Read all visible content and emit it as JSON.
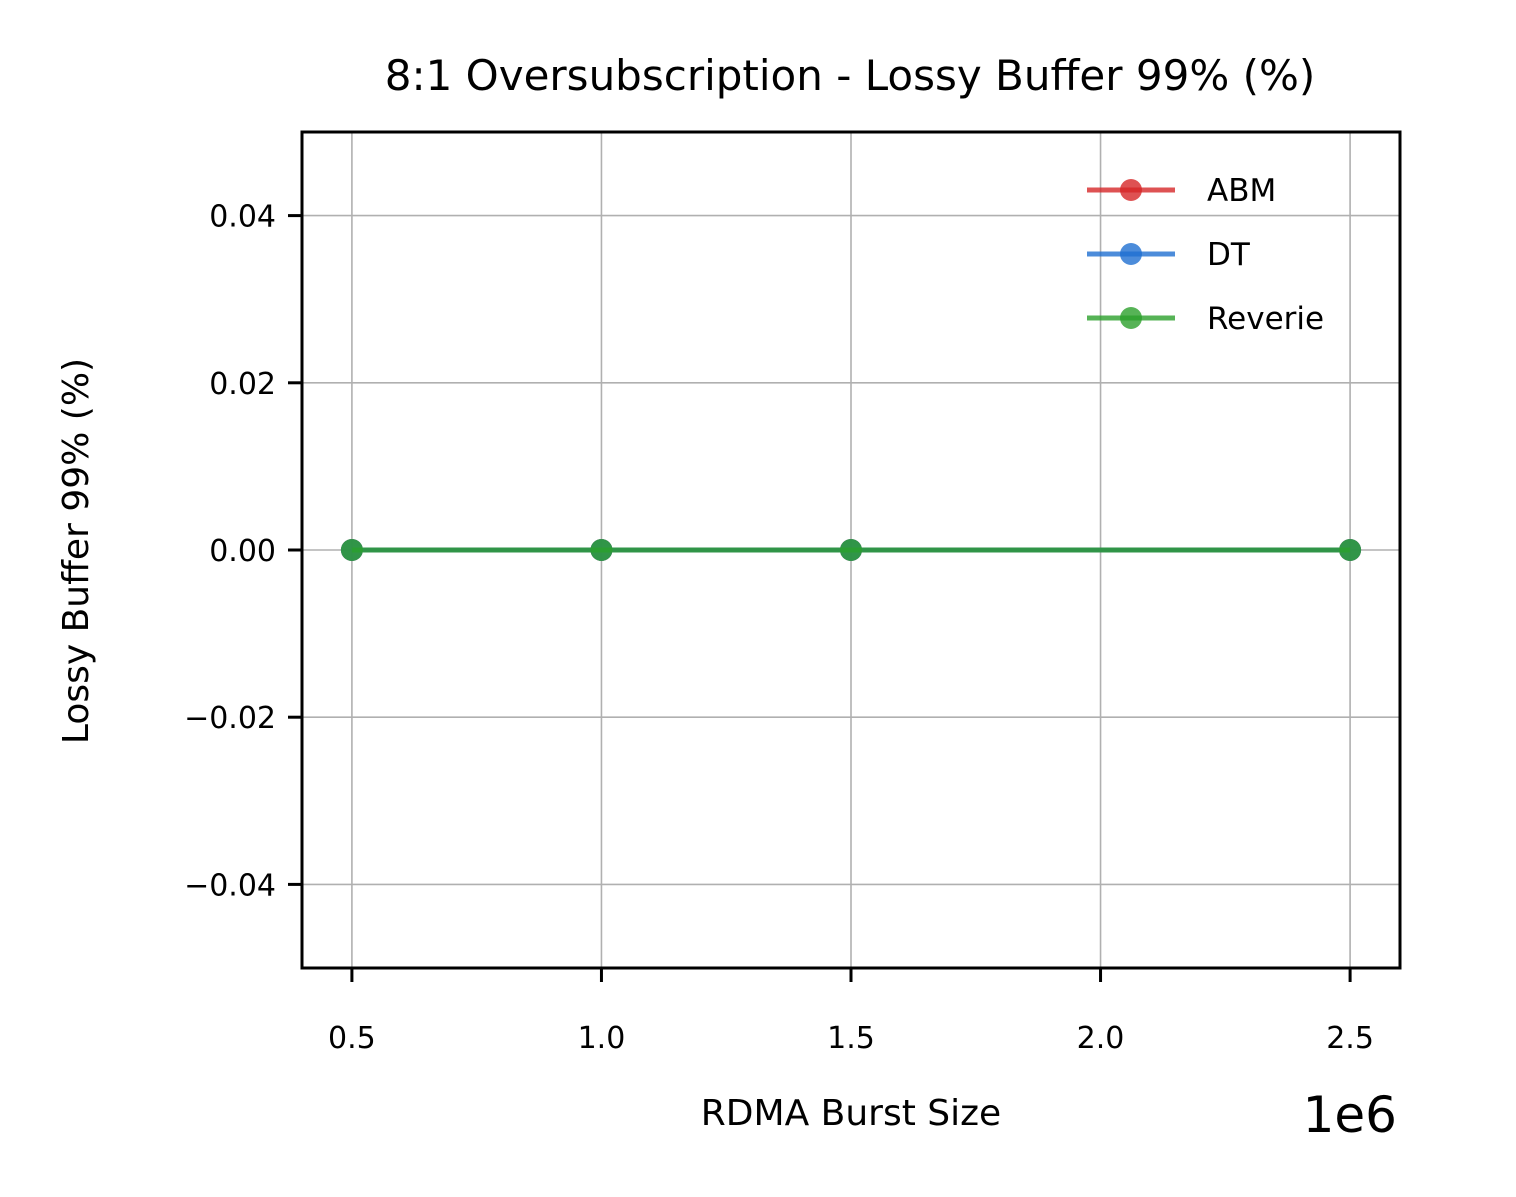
{
  "chart_data": {
    "type": "line",
    "title": "8:1 Oversubscription - Lossy Buffer 99% (%)",
    "xlabel": "RDMA Burst Size",
    "ylabel": "Lossy Buffer 99% (%)",
    "x_offset_label": "1e6",
    "x": [
      0.5,
      1.0,
      1.5,
      2.5
    ],
    "xlim": [
      0.4,
      2.6
    ],
    "ylim": [
      -0.05,
      0.05
    ],
    "xticks": [
      0.5,
      1.0,
      1.5,
      2.0,
      2.5
    ],
    "xtick_labels": [
      "0.5",
      "1.0",
      "1.5",
      "2.0",
      "2.5"
    ],
    "yticks": [
      0.04,
      0.02,
      0.0,
      -0.02,
      -0.04
    ],
    "ytick_labels": [
      "0.04",
      "0.02",
      "0.00",
      "−0.02",
      "−0.04"
    ],
    "grid": true,
    "legend_position": "top-right",
    "series": [
      {
        "name": "ABM",
        "color": "#d62728",
        "values": [
          0,
          0,
          0,
          0
        ]
      },
      {
        "name": "DT",
        "color": "#1f6fd1",
        "values": [
          0,
          0,
          0,
          0
        ]
      },
      {
        "name": "Reverie",
        "color": "#2ca02c",
        "values": [
          0,
          0,
          0,
          0
        ]
      }
    ]
  }
}
